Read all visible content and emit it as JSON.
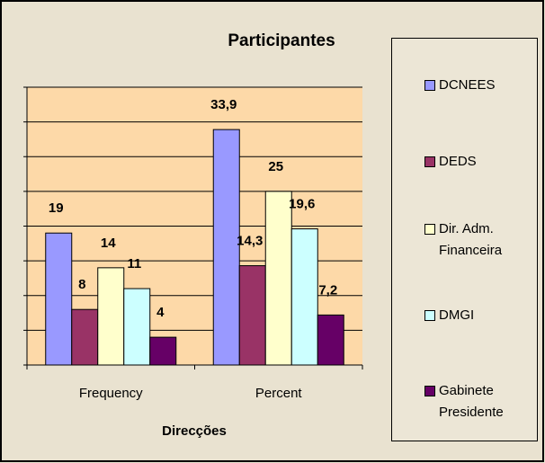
{
  "chart_data": {
    "type": "bar",
    "title": "Participantes",
    "x_label": "Direcções",
    "categories": [
      "Frequency",
      "Percent"
    ],
    "series": [
      {
        "name": "DCNEES",
        "color": "#9999ff",
        "values": [
          19,
          33.9
        ],
        "value_labels": [
          "19",
          "33,9"
        ]
      },
      {
        "name": "DEDS",
        "color": "#993366",
        "values": [
          8,
          14.3
        ],
        "value_labels": [
          "8",
          "14,3"
        ]
      },
      {
        "name": "Dir. Adm. Financeira",
        "color": "#ffffcc",
        "values": [
          14,
          25
        ],
        "value_labels": [
          "14",
          "25"
        ]
      },
      {
        "name": "DMGI",
        "color": "#ccffff",
        "values": [
          11,
          19.6
        ],
        "value_labels": [
          "11",
          "19,6"
        ]
      },
      {
        "name": "Gabinete Presidente",
        "color": "#660066",
        "values": [
          4,
          7.2
        ],
        "value_labels": [
          "4",
          "7,2"
        ]
      }
    ],
    "ylim": [
      0,
      40
    ],
    "yticks": [
      0,
      5,
      10,
      15,
      20,
      25,
      30,
      35,
      40
    ],
    "grid": true,
    "legend": "right"
  }
}
